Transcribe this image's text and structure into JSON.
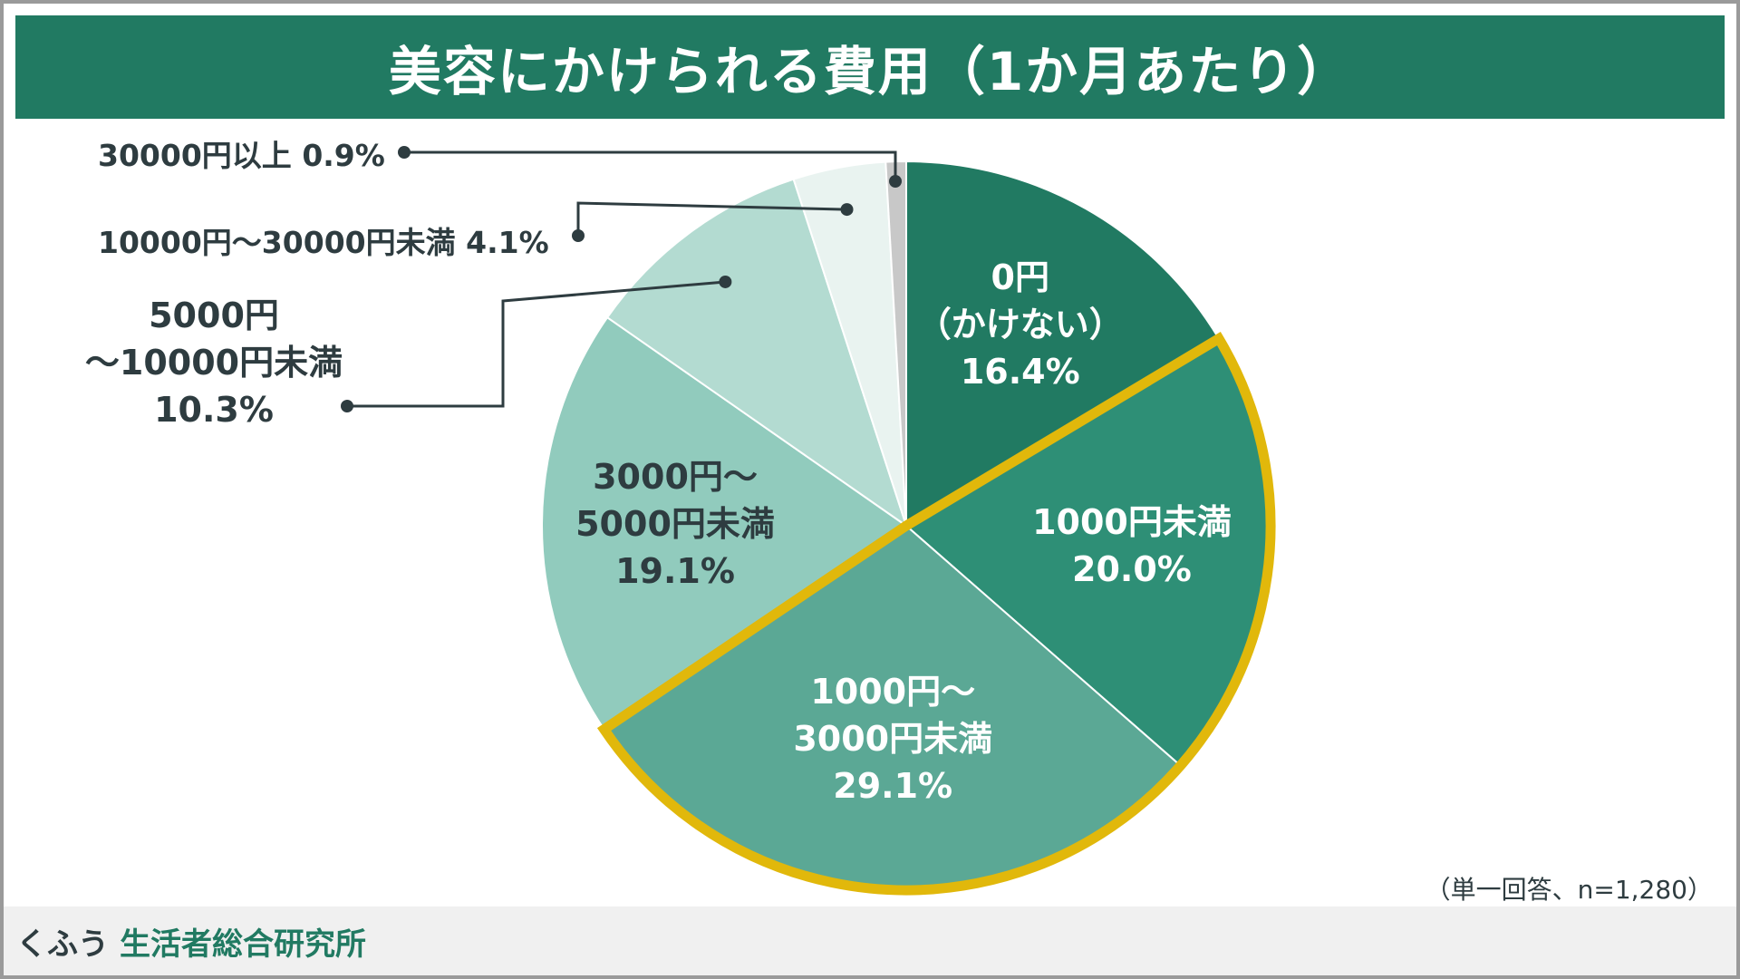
{
  "title": "美容にかけられる費用（1か月あたり）",
  "note": "（単一回答、n=1,280）",
  "footer": {
    "brand": "くふう",
    "org": "生活者総合研究所"
  },
  "colors": {
    "header": "#217a62",
    "highlight": "#e1b80b",
    "text_dark": "#2e3c40"
  },
  "chart_data": {
    "type": "pie",
    "title": "美容にかけられる費用（1か月あたり）",
    "n": 1280,
    "slices": [
      {
        "label_lines": [
          "0円",
          "（かけない）"
        ],
        "value": 16.4,
        "value_label": "16.4%",
        "color": "#217a62",
        "label_style": "light"
      },
      {
        "label_lines": [
          "1000円未満"
        ],
        "value": 20.0,
        "value_label": "20.0%",
        "color": "#2e8f76",
        "label_style": "light",
        "highlighted": true
      },
      {
        "label_lines": [
          "1000円～",
          "3000円未満"
        ],
        "value": 29.1,
        "value_label": "29.1%",
        "color": "#5ba895",
        "label_style": "light",
        "highlighted": true
      },
      {
        "label_lines": [
          "3000円～",
          "5000円未満"
        ],
        "value": 19.1,
        "value_label": "19.1%",
        "color": "#91cbbd",
        "label_style": "dark"
      },
      {
        "label_lines": [
          "5000円",
          "～10000円未満"
        ],
        "value": 10.3,
        "value_label": "10.3%",
        "color": "#b3dbd1",
        "label_style": "dark",
        "external": true
      },
      {
        "label_lines": [
          "10000円～30000円未満"
        ],
        "value": 4.1,
        "value_label": "4.1%",
        "color": "#e9f3f0",
        "label_style": "dark",
        "external": true
      },
      {
        "label_lines": [
          "30000円以上"
        ],
        "value": 0.9,
        "value_label": "0.9%",
        "color": "#c8c8c8",
        "label_style": "dark",
        "external": true
      }
    ]
  }
}
